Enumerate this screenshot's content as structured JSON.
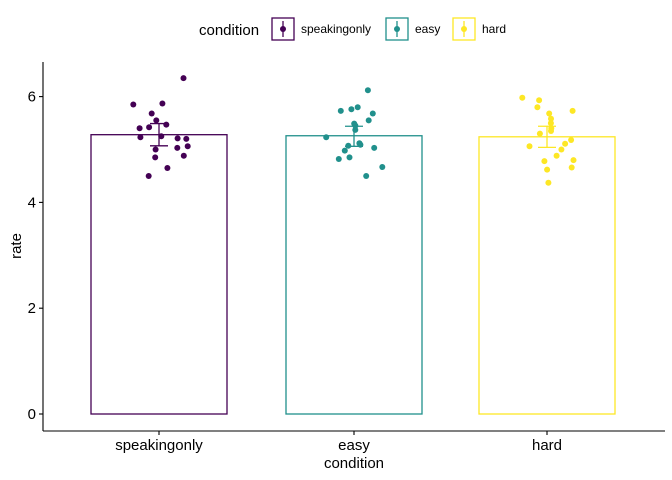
{
  "chart_data": {
    "type": "bar",
    "categories": [
      "speakingonly",
      "easy",
      "hard"
    ],
    "colors": [
      "#440154",
      "#21908c",
      "#fde725"
    ],
    "values": [
      5.28,
      5.26,
      5.24
    ],
    "error_bars": [
      [
        5.07,
        5.49
      ],
      [
        5.06,
        5.44
      ],
      [
        5.04,
        5.44
      ]
    ],
    "points": [
      [
        6.35,
        5.85,
        5.87,
        5.68,
        5.55,
        5.47,
        5.4,
        5.42,
        5.25,
        5.2,
        5.21,
        5.23,
        5.06,
        5.03,
        5.0,
        4.88,
        4.85,
        4.65,
        4.5
      ],
      [
        6.12,
        5.8,
        5.76,
        5.73,
        5.68,
        5.55,
        5.49,
        5.45,
        5.37,
        5.23,
        5.12,
        5.09,
        5.07,
        5.03,
        4.98,
        4.85,
        4.82,
        4.67,
        4.5
      ],
      [
        5.98,
        5.93,
        5.8,
        5.73,
        5.68,
        5.58,
        5.5,
        5.4,
        5.35,
        5.3,
        5.18,
        5.11,
        5.06,
        5.0,
        4.88,
        4.8,
        4.78,
        4.66,
        4.62,
        4.37
      ]
    ],
    "xlabel": "condition",
    "ylabel": "rate",
    "ylim": [
      0,
      6.65
    ],
    "yticks": [
      0,
      2,
      4,
      6
    ],
    "legend": {
      "title": "condition",
      "position": "top",
      "entries": [
        "speakingonly",
        "easy",
        "hard"
      ]
    },
    "grid": false
  }
}
